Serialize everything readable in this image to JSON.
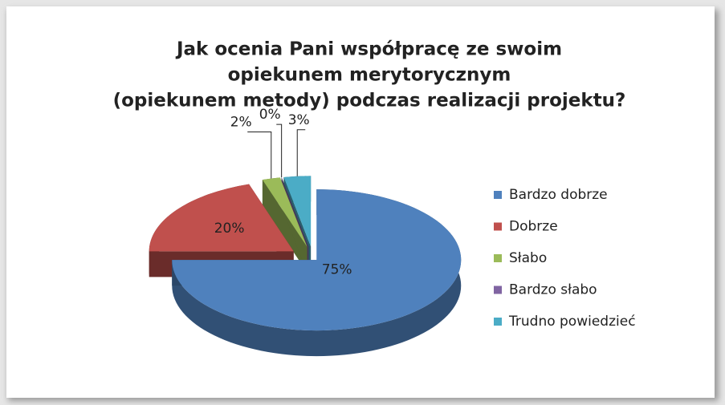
{
  "chart_data": {
    "type": "pie3d",
    "title": [
      "Jak ocenia Pani współpracę ze swoim",
      "opiekunem merytorycznym",
      "(opiekunem metody) podczas realizacji projektu?"
    ],
    "categories": [
      "Bardzo dobrze",
      "Dobrze",
      "Słabo",
      "Bardzo słabo",
      "Trudno powiedzieć"
    ],
    "values": [
      75,
      20,
      2,
      0,
      3
    ],
    "value_labels": [
      "75%",
      "20%",
      "2%",
      "0%",
      "3%"
    ],
    "colors": [
      "#4f81bd",
      "#c0504d",
      "#9bbb59",
      "#8064a2",
      "#4bacc6"
    ],
    "legend": "right"
  }
}
